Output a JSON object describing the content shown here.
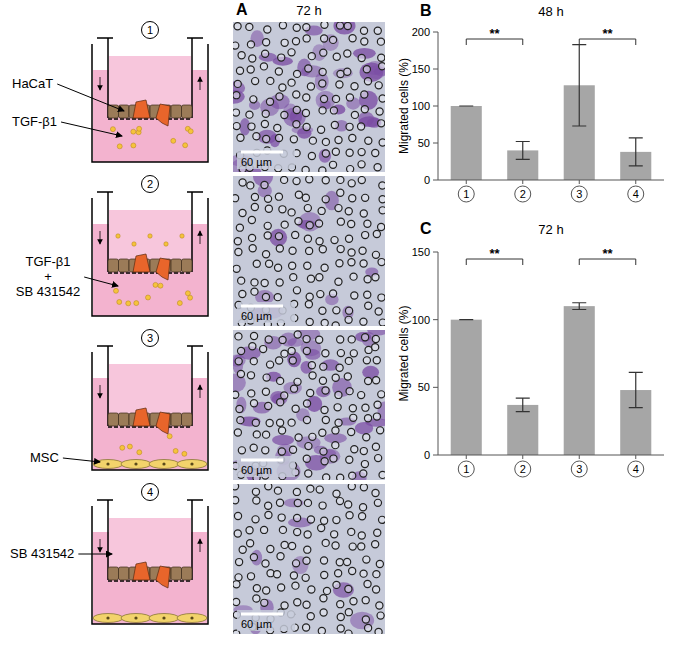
{
  "panel_a": {
    "letter": "A",
    "time": "72 h",
    "scale_bar": "60 µm",
    "conditions": [
      {
        "number": "1",
        "labels": [
          [
            "HaCaT"
          ],
          [
            "TGF-β1"
          ]
        ]
      },
      {
        "number": "2",
        "labels": [
          [
            "TGF-β1",
            "+",
            "SB 431542"
          ]
        ]
      },
      {
        "number": "3",
        "labels": [
          [
            "MSC"
          ]
        ]
      },
      {
        "number": "4",
        "labels": [
          [
            "SB 431542"
          ]
        ]
      }
    ]
  },
  "chart_data": [
    {
      "type": "bar",
      "panel": "B",
      "title": "48 h",
      "y_label": "Migrated cells (%)",
      "categories": [
        "1",
        "2",
        "3",
        "4"
      ],
      "values": [
        100,
        40,
        128,
        38
      ],
      "errors": [
        0,
        12,
        55,
        19
      ],
      "color": "#a6a6a6",
      "ylim": [
        0,
        200
      ],
      "yticks": [
        0,
        50,
        100,
        150,
        200
      ],
      "annotations": [
        {
          "text": "**",
          "from": "1",
          "to": "2"
        },
        {
          "text": "**",
          "from": "3",
          "to": "4"
        }
      ]
    },
    {
      "type": "bar",
      "panel": "C",
      "title": "72 h",
      "y_label": "Migrated cells (%)",
      "categories": [
        "1",
        "2",
        "3",
        "4"
      ],
      "values": [
        100,
        37,
        110,
        48
      ],
      "errors": [
        0,
        5,
        2.5,
        13
      ],
      "color": "#a6a6a6",
      "ylim": [
        0,
        150
      ],
      "yticks": [
        0,
        50,
        100,
        150
      ],
      "annotations": [
        {
          "text": "**",
          "from": "1",
          "to": "2"
        },
        {
          "text": "**",
          "from": "3",
          "to": "4"
        }
      ]
    }
  ]
}
